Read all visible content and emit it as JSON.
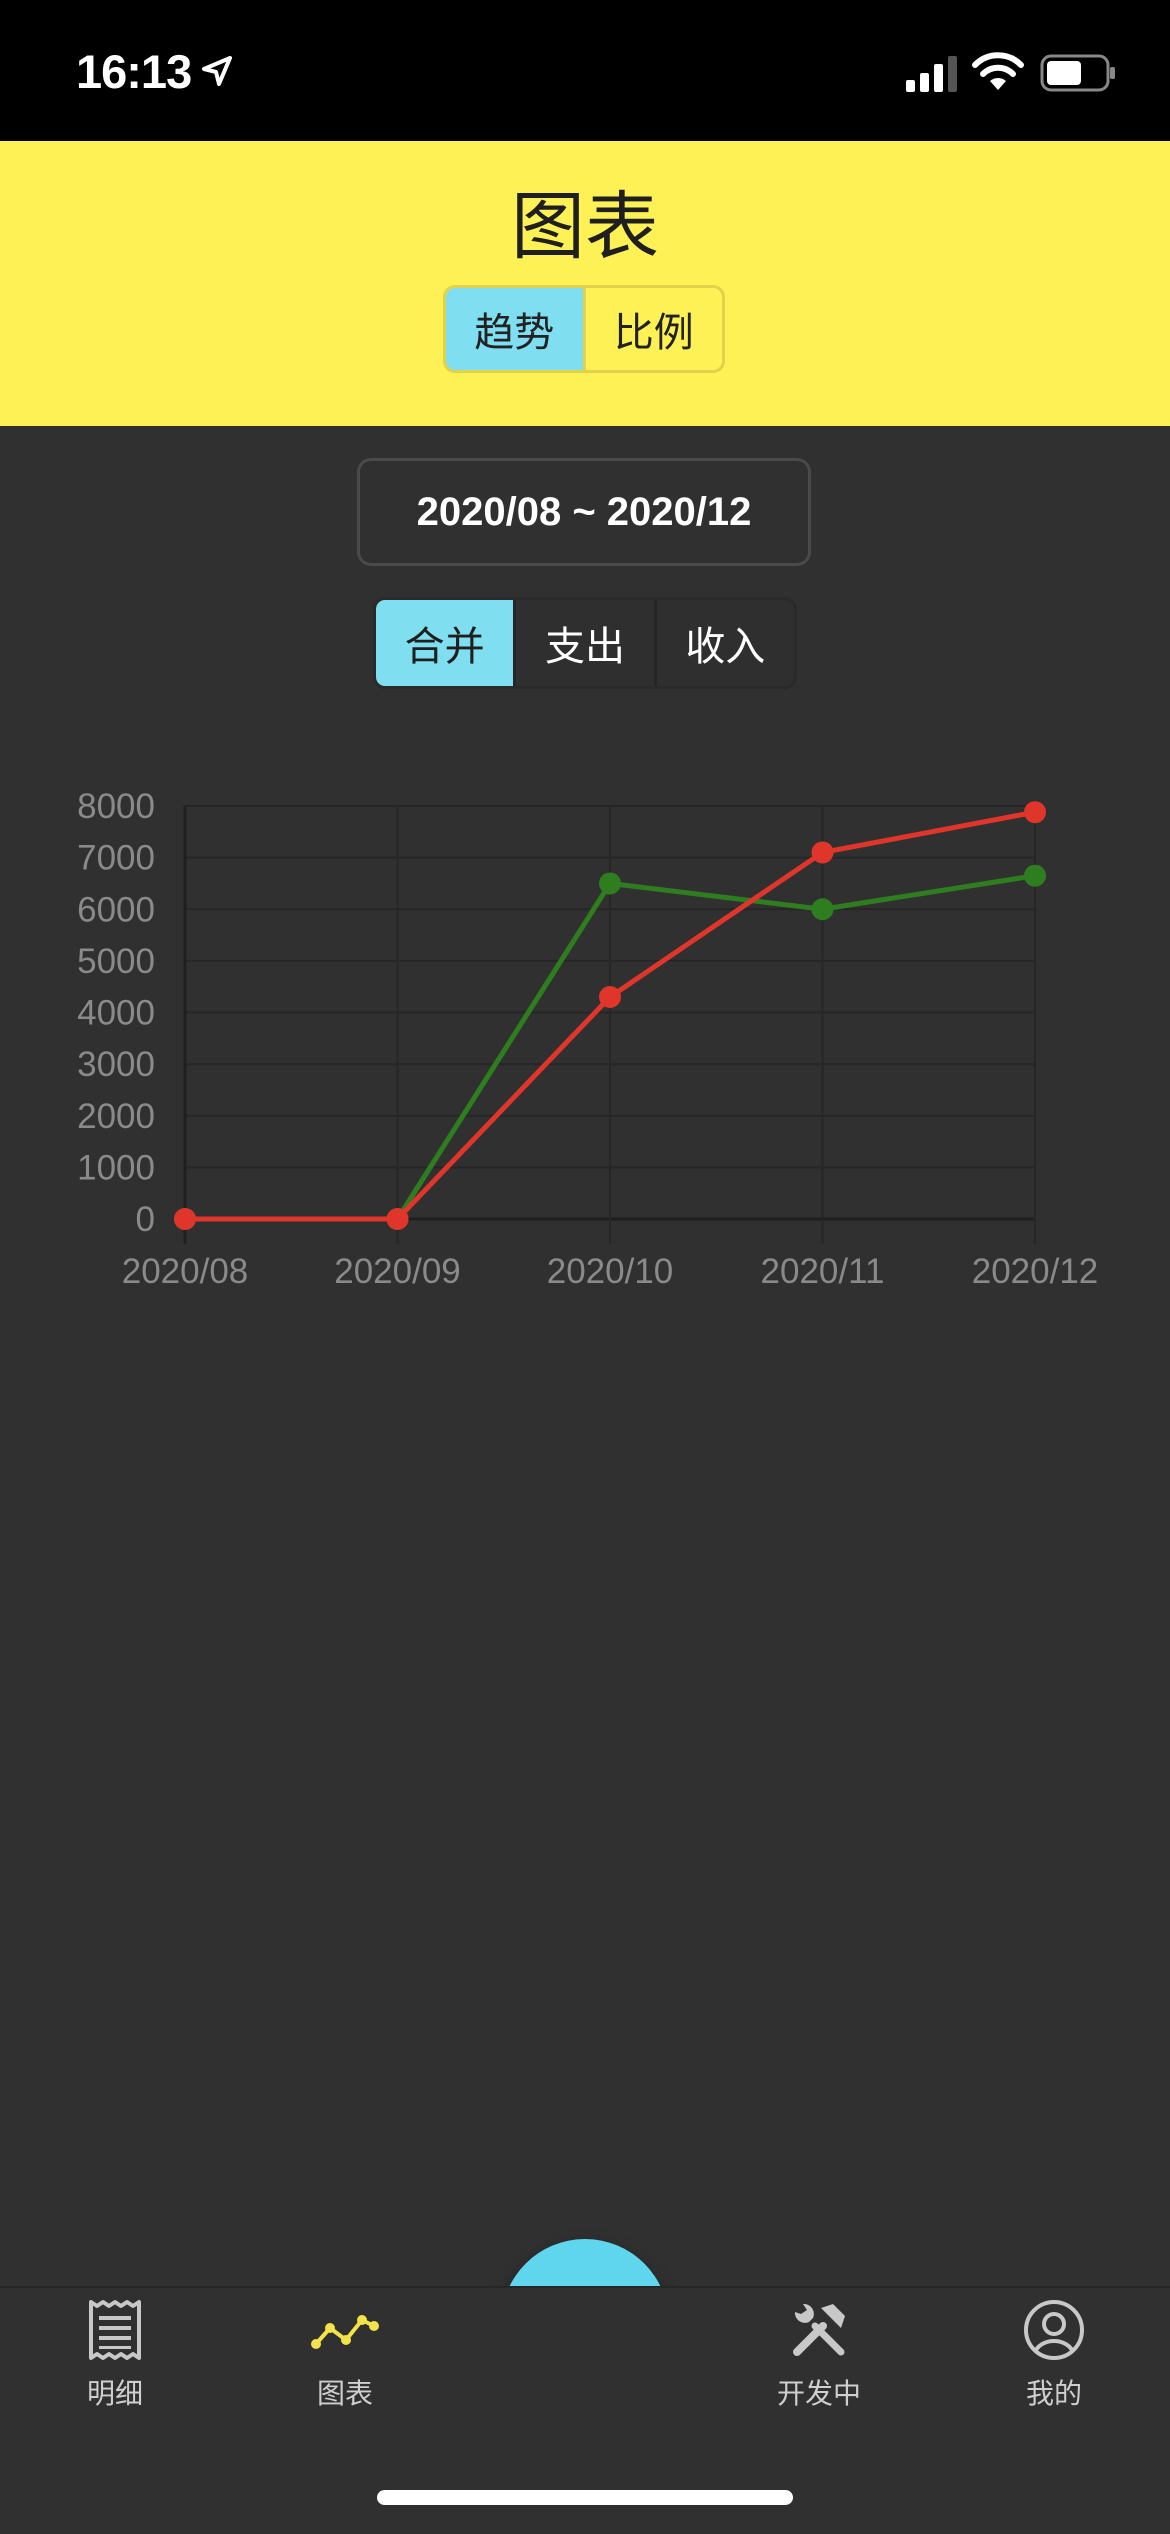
{
  "status_bar": {
    "time": "16:13"
  },
  "header": {
    "title": "图表",
    "tabs": [
      {
        "label": "趋势",
        "active": true
      },
      {
        "label": "比例",
        "active": false
      }
    ]
  },
  "date_range": {
    "label": "2020/08 ~ 2020/12"
  },
  "filter_tabs": [
    {
      "label": "合并",
      "active": true
    },
    {
      "label": "支出",
      "active": false
    },
    {
      "label": "收入",
      "active": false
    }
  ],
  "chart_data": {
    "type": "line",
    "categories": [
      "2020/08",
      "2020/09",
      "2020/10",
      "2020/11",
      "2020/12"
    ],
    "ylim": [
      0,
      8000
    ],
    "yticks": [
      0,
      1000,
      2000,
      3000,
      4000,
      5000,
      6000,
      7000,
      8000
    ],
    "grid": true,
    "series": [
      {
        "values": [
          0,
          0,
          6500,
          6000,
          6650
        ],
        "color": "#2e7d1f"
      },
      {
        "values": [
          0,
          0,
          4300,
          7100,
          7880
        ],
        "color": "#e0352b"
      }
    ]
  },
  "fab": {
    "icon": "plus-icon"
  },
  "tab_bar": {
    "items": [
      {
        "label": "明细",
        "icon": "receipt-icon",
        "active": false
      },
      {
        "label": "图表",
        "icon": "line-chart-icon",
        "active": true
      },
      {
        "label": "开发中",
        "icon": "tools-icon",
        "active": false
      },
      {
        "label": "我的",
        "icon": "user-circle-icon",
        "active": false
      }
    ]
  },
  "colors": {
    "header_bg": "#fdf156",
    "accent": "#5fd5ee",
    "active_tab": "#f2e34a",
    "background": "#303030"
  }
}
